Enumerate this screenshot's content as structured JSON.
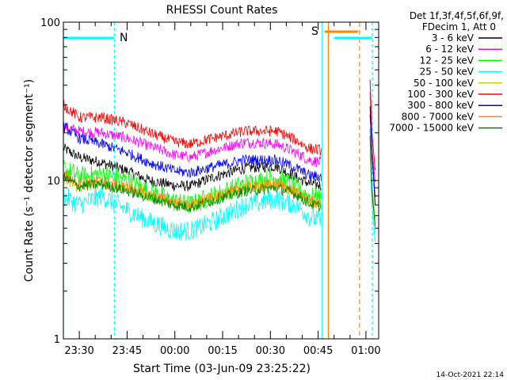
{
  "chart_data": {
    "type": "line",
    "title": "RHESSI Count Rates",
    "xlabel": "Start Time (03-Jun-09 23:25:22)",
    "ylabel": "Count Rate (s⁻¹ detector segment⁻¹)",
    "yscale": "log",
    "ylim": [
      1,
      100
    ],
    "xlim": [
      "23:25",
      "01:04"
    ],
    "x_ticks": [
      "23:30",
      "23:45",
      "00:00",
      "00:15",
      "00:30",
      "00:45",
      "01:00"
    ],
    "y_ticks": [
      "1",
      "10",
      "100"
    ],
    "grid": false,
    "legend_placement": "right",
    "legend_header": [
      "Det 1f,3f,4f,5f,6f,9f,",
      "FDecim 1, Att 0"
    ],
    "series": [
      {
        "name": "3 - 6 keV",
        "color": "#000000",
        "values": [
          16.0,
          14.0,
          13.0,
          11.5,
          10.0,
          9.3,
          9.2,
          10.5,
          12.0,
          12.3,
          10.5,
          9.6,
          9.3,
          16.0
        ]
      },
      {
        "name": "6 - 12 keV",
        "color": "#ff00ff",
        "values": [
          22.0,
          20.5,
          20.0,
          18.5,
          16.5,
          14.5,
          14.0,
          15.5,
          17.5,
          17.0,
          15.0,
          13.5,
          13.0,
          16.0
        ]
      },
      {
        "name": "12 - 25 keV",
        "color": "#00ff00",
        "values": [
          12.0,
          10.5,
          11.0,
          10.0,
          8.5,
          7.3,
          7.0,
          8.0,
          9.5,
          10.5,
          9.0,
          8.0,
          7.6,
          9.0
        ]
      },
      {
        "name": "25 - 50 keV",
        "color": "#00ffff",
        "values": [
          8.0,
          7.0,
          8.0,
          6.5,
          5.5,
          4.8,
          4.8,
          5.5,
          7.0,
          7.6,
          7.0,
          6.0,
          5.5,
          7.0
        ]
      },
      {
        "name": "50 - 100 keV",
        "color": "#cccc00",
        "values": [
          10.0,
          9.0,
          9.5,
          9.0,
          8.0,
          7.2,
          7.0,
          7.8,
          9.0,
          9.5,
          8.5,
          7.5,
          7.0,
          9.0
        ]
      },
      {
        "name": "100 - 300 keV",
        "color": "#ff0000",
        "values": [
          30.0,
          25.0,
          25.0,
          23.0,
          20.0,
          17.5,
          17.0,
          18.5,
          20.5,
          20.5,
          18.0,
          16.0,
          15.5,
          20.0
        ]
      },
      {
        "name": "300 - 800 keV",
        "color": "#0000ff",
        "values": [
          22.0,
          18.5,
          17.0,
          15.0,
          13.0,
          11.5,
          11.2,
          12.2,
          13.5,
          13.5,
          12.0,
          10.8,
          10.5,
          14.0
        ]
      },
      {
        "name": "800 - 7000 keV",
        "color": "#ff8800",
        "values": [
          11.0,
          9.5,
          10.0,
          9.0,
          8.2,
          7.3,
          7.0,
          7.8,
          9.0,
          9.5,
          8.5,
          7.5,
          7.0,
          9.0
        ]
      },
      {
        "name": "7000 - 15000 keV",
        "color": "#008800",
        "values": [
          10.5,
          9.2,
          9.5,
          8.6,
          7.8,
          7.0,
          6.8,
          7.5,
          8.6,
          9.0,
          8.2,
          7.2,
          6.8,
          8.5
        ]
      }
    ],
    "annotations": [
      {
        "text": "N",
        "color": "#00ffff"
      },
      {
        "text": "S",
        "color": "#ff8800"
      }
    ],
    "footer": "14-Oct-2021 22:14"
  }
}
